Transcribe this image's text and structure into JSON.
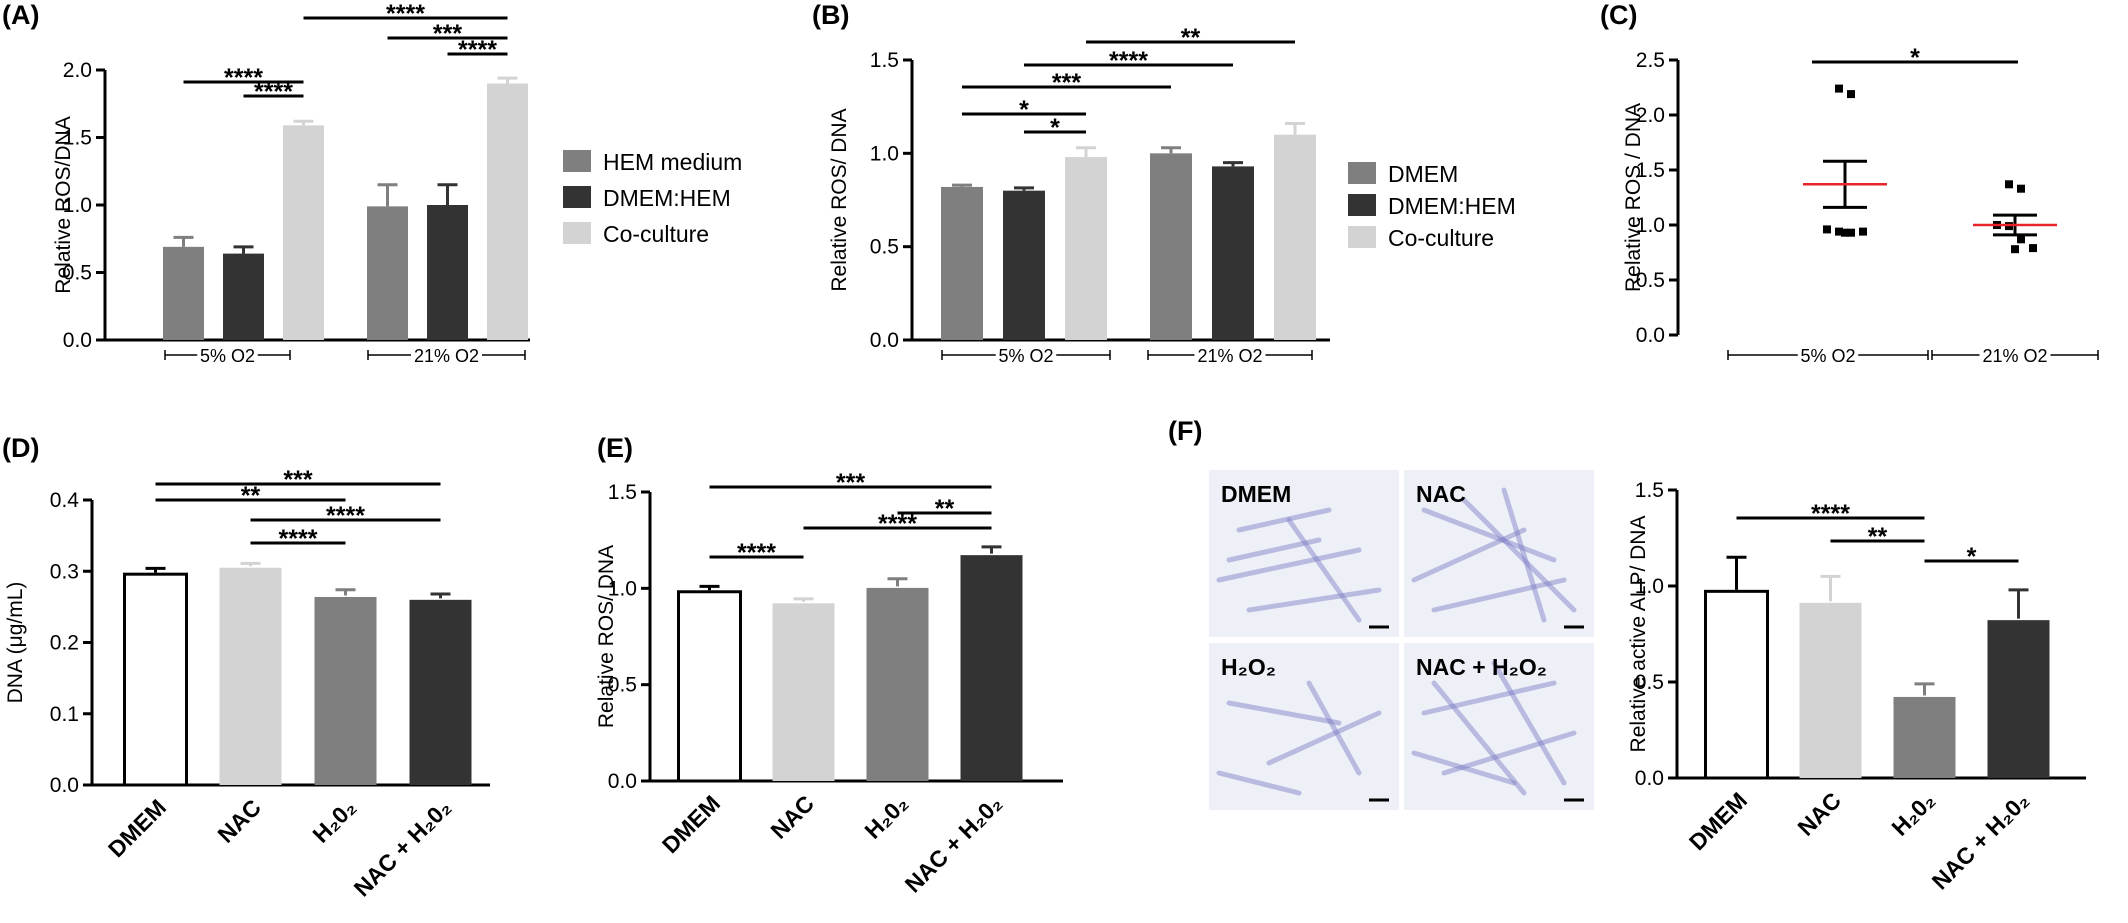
{
  "panels": [
    {
      "id": "A",
      "label": "(A)"
    },
    {
      "id": "B",
      "label": "(B)"
    },
    {
      "id": "C",
      "label": "(C)"
    },
    {
      "id": "D",
      "label": "(D)"
    },
    {
      "id": "E",
      "label": "(E)"
    },
    {
      "id": "F",
      "label": "(F)"
    }
  ],
  "micrographs": [
    {
      "label": "DMEM"
    },
    {
      "label": "NAC"
    },
    {
      "label": "H₂O₂"
    },
    {
      "label": "NAC + H₂O₂"
    }
  ],
  "colors": {
    "light": "#d3d3d3",
    "mid": "#7f7f7f",
    "dark": "#333333",
    "white": "#ffffff",
    "mean_line": "#e8232a",
    "stain": "#7b7bc4",
    "micro_bg": "#eef0f8"
  },
  "chart_data": [
    {
      "panel": "A",
      "type": "bar",
      "ylabel": "Relative ROS/DNA",
      "ylim": [
        0,
        2.0
      ],
      "yticks": [
        "0.0",
        "0.5",
        "1.0",
        "1.5",
        "2.0"
      ],
      "groups": [
        "5% O2",
        "21% O2"
      ],
      "series": [
        {
          "name": "HEM medium",
          "color": "#7f7f7f",
          "values": [
            0.69,
            0.99
          ],
          "errors": [
            0.07,
            0.16
          ]
        },
        {
          "name": "DMEM:HEM",
          "color": "#333333",
          "values": [
            0.64,
            1.0
          ],
          "errors": [
            0.05,
            0.15
          ]
        },
        {
          "name": "Co-culture",
          "color": "#d3d3d3",
          "values": [
            1.59,
            1.9
          ],
          "errors": [
            0.03,
            0.04
          ]
        }
      ],
      "legend": "right",
      "significance": [
        {
          "from": [
            0,
            0
          ],
          "to": [
            0,
            2
          ],
          "label": "****"
        },
        {
          "from": [
            0,
            1
          ],
          "to": [
            0,
            2
          ],
          "label": "****"
        },
        {
          "from": [
            0,
            2
          ],
          "to": [
            1,
            2
          ],
          "label": "****"
        },
        {
          "from": [
            1,
            0
          ],
          "to": [
            1,
            2
          ],
          "label": "***"
        },
        {
          "from": [
            1,
            1
          ],
          "to": [
            1,
            2
          ],
          "label": "****"
        }
      ]
    },
    {
      "panel": "B",
      "type": "bar",
      "ylabel": "Relative ROS/ DNA",
      "ylim": [
        0,
        1.5
      ],
      "yticks": [
        "0.0",
        "0.5",
        "1.0",
        "1.5"
      ],
      "groups": [
        "5% O2",
        "21% O2"
      ],
      "series": [
        {
          "name": "DMEM",
          "color": "#7f7f7f",
          "values": [
            0.82,
            1.0
          ],
          "errors": [
            0.01,
            0.03
          ]
        },
        {
          "name": "DMEM:HEM",
          "color": "#333333",
          "values": [
            0.8,
            0.93
          ],
          "errors": [
            0.015,
            0.02
          ]
        },
        {
          "name": "Co-culture",
          "color": "#d3d3d3",
          "values": [
            0.98,
            1.1
          ],
          "errors": [
            0.05,
            0.06
          ]
        }
      ],
      "legend": "right",
      "significance": [
        {
          "from": [
            0,
            0
          ],
          "to": [
            1,
            0
          ],
          "label": "***"
        },
        {
          "from": [
            0,
            0
          ],
          "to": [
            0,
            2
          ],
          "label": "*"
        },
        {
          "from": [
            0,
            1
          ],
          "to": [
            0,
            2
          ],
          "label": "*"
        },
        {
          "from": [
            0,
            1
          ],
          "to": [
            1,
            1
          ],
          "label": "****"
        },
        {
          "from": [
            0,
            2
          ],
          "to": [
            1,
            2
          ],
          "label": "**"
        }
      ]
    },
    {
      "panel": "C",
      "type": "scatter",
      "ylabel": "Relative ROS / DNA",
      "ylim": [
        0,
        2.5
      ],
      "yticks": [
        "0.0",
        "0.5",
        "1.0",
        "1.5",
        "2.0",
        "2.5"
      ],
      "groups": [
        "5% O2",
        "21% O2"
      ],
      "points": [
        [
          2.24,
          2.19,
          0.96,
          0.94,
          0.93,
          0.94,
          0.93
        ],
        [
          1.37,
          1.33,
          1.0,
          0.99,
          0.87,
          0.79,
          0.78
        ]
      ],
      "means": [
        1.37,
        1.0
      ],
      "sem": [
        0.21,
        0.09
      ],
      "significance": [
        {
          "from": 0,
          "to": 1,
          "label": "*"
        }
      ]
    },
    {
      "panel": "D",
      "type": "bar",
      "ylabel": "DNA (μg/mL)",
      "ylim": [
        0,
        0.4
      ],
      "yticks": [
        "0.0",
        "0.1",
        "0.2",
        "0.3",
        "0.4"
      ],
      "categories": [
        "DMEM",
        "NAC",
        "H₂0₂",
        "NAC + H₂0₂"
      ],
      "values": [
        0.298,
        0.307,
        0.266,
        0.262
      ],
      "errors": [
        0.006,
        0.004,
        0.008,
        0.006
      ],
      "colors": [
        "#ffffff",
        "#d3d3d3",
        "#7f7f7f",
        "#333333"
      ],
      "significance": [
        {
          "from": 0,
          "to": 3,
          "label": "***"
        },
        {
          "from": 0,
          "to": 2,
          "label": "**"
        },
        {
          "from": 1,
          "to": 3,
          "label": "****"
        },
        {
          "from": 1,
          "to": 2,
          "label": "****"
        }
      ]
    },
    {
      "panel": "E",
      "type": "bar",
      "ylabel": "Relative ROS/ DNA",
      "ylim": [
        0,
        1.5
      ],
      "yticks": [
        "0.0",
        "0.5",
        "1.0",
        "1.5"
      ],
      "categories": [
        "DMEM",
        "NAC",
        "H₂0₂",
        "NAC + H₂0₂"
      ],
      "values": [
        0.99,
        0.93,
        1.01,
        1.18
      ],
      "errors": [
        0.02,
        0.015,
        0.04,
        0.035
      ],
      "colors": [
        "#ffffff",
        "#d3d3d3",
        "#7f7f7f",
        "#333333"
      ],
      "significance": [
        {
          "from": 0,
          "to": 3,
          "label": "***"
        },
        {
          "from": 0,
          "to": 1,
          "label": "****"
        },
        {
          "from": 1,
          "to": 3,
          "label": "****"
        },
        {
          "from": 2,
          "to": 3,
          "label": "**"
        }
      ]
    },
    {
      "panel": "F",
      "type": "bar",
      "ylabel": "Relative active ALP/ DNA",
      "ylim": [
        0,
        1.5
      ],
      "yticks": [
        "0.0",
        "0.5",
        "1.0",
        "1.5"
      ],
      "categories": [
        "DMEM",
        "NAC",
        "H₂0₂",
        "NAC + H₂0₂"
      ],
      "values": [
        0.98,
        0.92,
        0.43,
        0.83
      ],
      "errors": [
        0.17,
        0.13,
        0.06,
        0.15
      ],
      "colors": [
        "#ffffff",
        "#d3d3d3",
        "#7f7f7f",
        "#333333"
      ],
      "significance": [
        {
          "from": 0,
          "to": 2,
          "label": "****"
        },
        {
          "from": 1,
          "to": 2,
          "label": "**"
        },
        {
          "from": 2,
          "to": 3,
          "label": "*"
        }
      ]
    }
  ]
}
